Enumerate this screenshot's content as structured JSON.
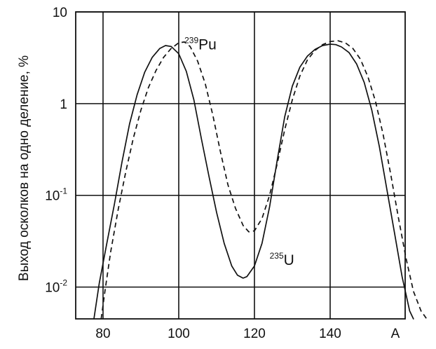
{
  "chart_data": {
    "type": "line",
    "title": "",
    "xlabel": "A",
    "ylabel": "Выход осколков на одно деление, %",
    "xlim": [
      74,
      578
    ],
    "ylim": [
      0.0045,
      10
    ],
    "y_scale": "log",
    "x_ticks": [
      {
        "value": 80,
        "label": "80"
      },
      {
        "value": 100,
        "label": "100"
      },
      {
        "value": 120,
        "label": "120"
      },
      {
        "value": 140,
        "label": "140"
      }
    ],
    "y_ticks": [
      {
        "value": 10,
        "label": "10"
      },
      {
        "value": 1,
        "label": "1"
      },
      {
        "value": 0.1,
        "label_base": "10",
        "label_exp": "-1"
      },
      {
        "value": 0.01,
        "label_base": "10",
        "label_exp": "-2"
      }
    ],
    "grid": true,
    "series": [
      {
        "name_mass": "235",
        "name_symbol": "U",
        "style": "solid",
        "color": "#111111",
        "x": [
          77.6,
          79,
          81,
          83,
          85,
          87,
          89,
          91,
          93,
          95,
          96.5,
          98,
          100,
          102,
          104,
          106,
          108,
          110,
          112,
          114,
          115.5,
          117,
          118,
          120,
          122,
          124,
          126,
          128,
          130,
          132,
          134,
          136,
          138,
          140,
          141.5,
          143,
          145,
          147,
          149,
          151,
          153,
          155,
          157,
          159,
          161,
          162
        ],
        "y": [
          0.0045,
          0.011,
          0.03,
          0.08,
          0.23,
          0.6,
          1.25,
          2.2,
          3.2,
          4.0,
          4.3,
          4.2,
          3.5,
          2.25,
          1.1,
          0.41,
          0.16,
          0.065,
          0.03,
          0.017,
          0.0135,
          0.0125,
          0.013,
          0.017,
          0.03,
          0.075,
          0.24,
          0.72,
          1.55,
          2.5,
          3.3,
          3.9,
          4.3,
          4.45,
          4.4,
          4.15,
          3.6,
          2.7,
          1.7,
          0.85,
          0.34,
          0.115,
          0.039,
          0.013,
          0.0055,
          0.0045
        ]
      },
      {
        "name_mass": "239",
        "name_symbol": "Pu",
        "style": "dashed",
        "color": "#111111",
        "x": [
          79.5,
          80.5,
          82,
          84,
          86,
          88,
          90,
          92,
          94,
          96,
          98,
          100,
          101.5,
          103,
          105,
          107,
          109,
          111,
          113,
          115,
          117,
          118.5,
          120,
          122,
          124,
          126,
          128,
          130,
          132,
          134,
          136,
          138,
          140,
          142,
          144,
          146,
          148,
          150,
          152,
          154,
          156,
          158,
          160,
          162,
          164,
          165.5
        ],
        "y": [
          0.0045,
          0.009,
          0.024,
          0.07,
          0.18,
          0.42,
          0.85,
          1.5,
          2.3,
          3.2,
          4.0,
          4.6,
          4.7,
          4.2,
          2.9,
          1.65,
          0.75,
          0.3,
          0.13,
          0.072,
          0.047,
          0.04,
          0.041,
          0.056,
          0.1,
          0.22,
          0.52,
          1.1,
          2.0,
          3.0,
          3.8,
          4.4,
          4.75,
          4.85,
          4.6,
          4.0,
          3.05,
          1.95,
          1.05,
          0.46,
          0.17,
          0.058,
          0.021,
          0.009,
          0.0055,
          0.0045
        ]
      }
    ],
    "annotations": [
      {
        "series": 1,
        "x": 101.5,
        "y": 3.9,
        "anchor": "start"
      },
      {
        "series": 0,
        "x": 124,
        "y": 0.0175,
        "anchor": "start"
      }
    ]
  }
}
